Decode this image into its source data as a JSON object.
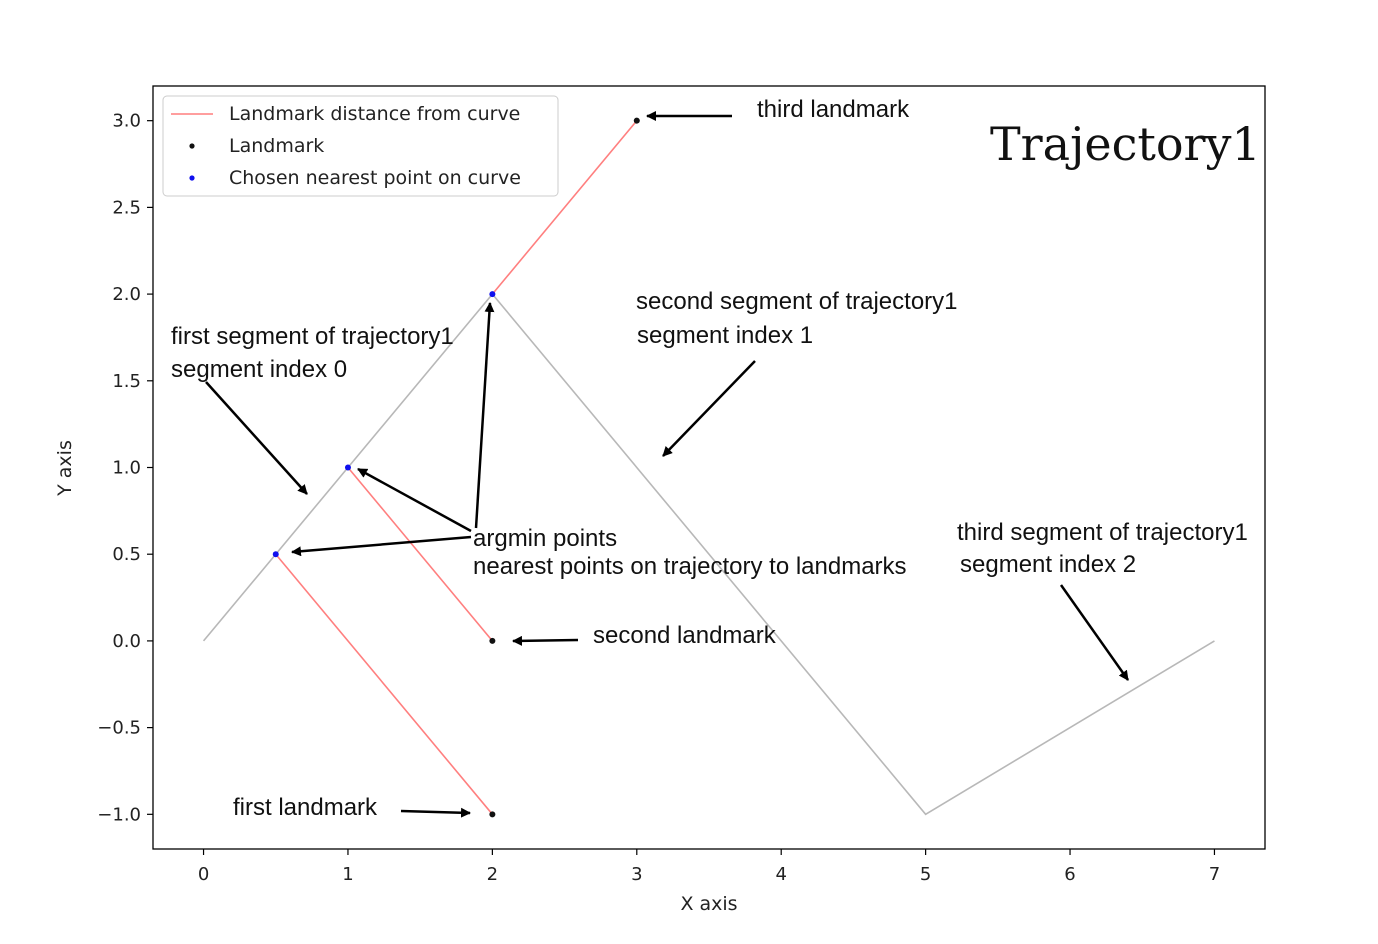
{
  "chart_data": {
    "type": "line",
    "title": "Trajectory1",
    "xlabel": "X axis",
    "ylabel": "Y axis",
    "xlim": [
      -0.35,
      7.35
    ],
    "ylim": [
      -1.2,
      3.2
    ],
    "grid": false,
    "x_ticks": [
      0,
      1,
      2,
      3,
      4,
      5,
      6,
      7
    ],
    "y_ticks": [
      3.0,
      2.5,
      2.0,
      1.5,
      1.0,
      0.5,
      0.0,
      -0.5,
      -1.0
    ],
    "x_tick_labels": [
      "0",
      "1",
      "2",
      "3",
      "4",
      "5",
      "6",
      "7"
    ],
    "y_tick_labels": [
      "3.0",
      "2.5",
      "2.0",
      "1.5",
      "1.0",
      "0.5",
      "0.0",
      "−0.5",
      "−1.0"
    ],
    "legend_position": "top-left",
    "colors": {
      "trajectory": "#b8b8b8",
      "distance": "#ff7f7f",
      "landmark": "#111111",
      "nearest": "#1010ee"
    },
    "trajectory": {
      "x": [
        0,
        2,
        5,
        7
      ],
      "y": [
        0,
        2,
        -1,
        0
      ]
    },
    "series": [
      {
        "name": "Landmark distance from curve",
        "kind": "segments",
        "segments": [
          [
            [
              0.5,
              0.5
            ],
            [
              2,
              -1
            ]
          ],
          [
            [
              1,
              1
            ],
            [
              2,
              0
            ]
          ],
          [
            [
              2,
              2
            ],
            [
              3,
              3
            ]
          ]
        ]
      },
      {
        "name": "Landmark",
        "kind": "scatter",
        "x": [
          2,
          2,
          3
        ],
        "y": [
          -1,
          0,
          3
        ]
      },
      {
        "name": "Chosen nearest point on curve",
        "kind": "scatter",
        "x": [
          0.5,
          1,
          2
        ],
        "y": [
          0.5,
          1,
          2
        ]
      }
    ],
    "annotations": {
      "third_landmark": [
        "third landmark"
      ],
      "second_landmark": [
        "second landmark"
      ],
      "first_landmark": [
        "first landmark"
      ],
      "first_segment": [
        "first segment of trajectory1",
        "segment index 0"
      ],
      "second_segment": [
        "second segment of trajectory1",
        "segment index 1"
      ],
      "third_segment": [
        "third segment of trajectory1",
        "segment index 2"
      ],
      "argmin": [
        "argmin points",
        "nearest points on trajectory to landmarks"
      ]
    }
  }
}
